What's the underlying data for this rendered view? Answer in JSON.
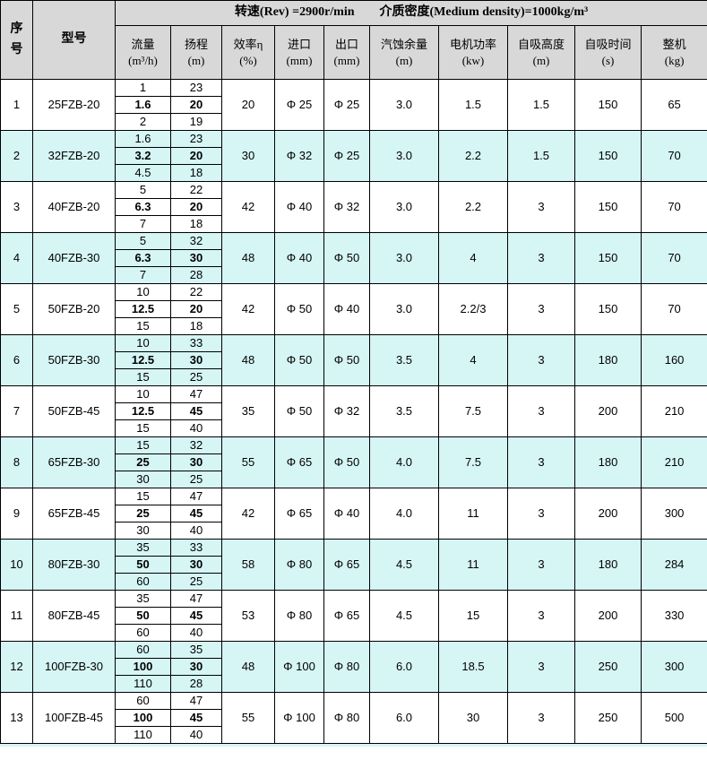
{
  "table": {
    "title": {
      "rev": "转速(Rev) =2900r/min",
      "density": "介质密度(Medium density)=1000kg/m³"
    },
    "columns": [
      {
        "key": "no",
        "label": "序号",
        "unit": ""
      },
      {
        "key": "model",
        "label": "型号",
        "unit": ""
      },
      {
        "key": "flow",
        "label": "流量",
        "unit": "(m³/h)"
      },
      {
        "key": "head",
        "label": "扬程",
        "unit": "(m)"
      },
      {
        "key": "eff",
        "label": "效率η",
        "unit": "(%)"
      },
      {
        "key": "inlet",
        "label": "进口",
        "unit": "(mm)"
      },
      {
        "key": "outlet",
        "label": "出口",
        "unit": "(mm)"
      },
      {
        "key": "npsh",
        "label": "汽蚀余量",
        "unit": "(m)"
      },
      {
        "key": "power",
        "label": "电机功率",
        "unit": "(kw)"
      },
      {
        "key": "suction_height",
        "label": "自吸高度",
        "unit": "(m)"
      },
      {
        "key": "suction_time",
        "label": "自吸时间",
        "unit": "(s)"
      },
      {
        "key": "weight",
        "label": "整机",
        "unit": "(kg)"
      }
    ],
    "rows": [
      {
        "no": "1",
        "model": "25FZB-20",
        "points": [
          [
            "1",
            "23"
          ],
          [
            "1.6",
            "20"
          ],
          [
            "2",
            "19"
          ]
        ],
        "eff": "20",
        "inlet": "Φ 25",
        "outlet": "Φ 25",
        "npsh": "3.0",
        "power": "1.5",
        "suction_height": "1.5",
        "suction_time": "150",
        "weight": "65"
      },
      {
        "no": "2",
        "model": "32FZB-20",
        "points": [
          [
            "1.6",
            "23"
          ],
          [
            "3.2",
            "20"
          ],
          [
            "4.5",
            "18"
          ]
        ],
        "eff": "30",
        "inlet": "Φ 32",
        "outlet": "Φ 25",
        "npsh": "3.0",
        "power": "2.2",
        "suction_height": "1.5",
        "suction_time": "150",
        "weight": "70"
      },
      {
        "no": "3",
        "model": "40FZB-20",
        "points": [
          [
            "5",
            "22"
          ],
          [
            "6.3",
            "20"
          ],
          [
            "7",
            "18"
          ]
        ],
        "eff": "42",
        "inlet": "Φ 40",
        "outlet": "Φ 32",
        "npsh": "3.0",
        "power": "2.2",
        "suction_height": "3",
        "suction_time": "150",
        "weight": "70"
      },
      {
        "no": "4",
        "model": "40FZB-30",
        "points": [
          [
            "5",
            "32"
          ],
          [
            "6.3",
            "30"
          ],
          [
            "7",
            "28"
          ]
        ],
        "eff": "48",
        "inlet": "Φ 40",
        "outlet": "Φ 50",
        "npsh": "3.0",
        "power": "4",
        "suction_height": "3",
        "suction_time": "150",
        "weight": "70"
      },
      {
        "no": "5",
        "model": "50FZB-20",
        "points": [
          [
            "10",
            "22"
          ],
          [
            "12.5",
            "20"
          ],
          [
            "15",
            "18"
          ]
        ],
        "eff": "42",
        "inlet": "Φ 50",
        "outlet": "Φ 40",
        "npsh": "3.0",
        "power": "2.2/3",
        "suction_height": "3",
        "suction_time": "150",
        "weight": "70"
      },
      {
        "no": "6",
        "model": "50FZB-30",
        "points": [
          [
            "10",
            "33"
          ],
          [
            "12.5",
            "30"
          ],
          [
            "15",
            "25"
          ]
        ],
        "eff": "48",
        "inlet": "Φ 50",
        "outlet": "Φ 50",
        "npsh": "3.5",
        "power": "4",
        "suction_height": "3",
        "suction_time": "180",
        "weight": "160"
      },
      {
        "no": "7",
        "model": "50FZB-45",
        "points": [
          [
            "10",
            "47"
          ],
          [
            "12.5",
            "45"
          ],
          [
            "15",
            "40"
          ]
        ],
        "eff": "35",
        "inlet": "Φ 50",
        "outlet": "Φ 32",
        "npsh": "3.5",
        "power": "7.5",
        "suction_height": "3",
        "suction_time": "200",
        "weight": "210"
      },
      {
        "no": "8",
        "model": "65FZB-30",
        "points": [
          [
            "15",
            "32"
          ],
          [
            "25",
            "30"
          ],
          [
            "30",
            "25"
          ]
        ],
        "eff": "55",
        "inlet": "Φ 65",
        "outlet": "Φ 50",
        "npsh": "4.0",
        "power": "7.5",
        "suction_height": "3",
        "suction_time": "180",
        "weight": "210"
      },
      {
        "no": "9",
        "model": "65FZB-45",
        "points": [
          [
            "15",
            "47"
          ],
          [
            "25",
            "45"
          ],
          [
            "30",
            "40"
          ]
        ],
        "eff": "42",
        "inlet": "Φ 65",
        "outlet": "Φ 40",
        "npsh": "4.0",
        "power": "11",
        "suction_height": "3",
        "suction_time": "200",
        "weight": "300"
      },
      {
        "no": "10",
        "model": "80FZB-30",
        "points": [
          [
            "35",
            "33"
          ],
          [
            "50",
            "30"
          ],
          [
            "60",
            "25"
          ]
        ],
        "eff": "58",
        "inlet": "Φ 80",
        "outlet": "Φ 65",
        "npsh": "4.5",
        "power": "11",
        "suction_height": "3",
        "suction_time": "180",
        "weight": "284"
      },
      {
        "no": "11",
        "model": "80FZB-45",
        "points": [
          [
            "35",
            "47"
          ],
          [
            "50",
            "45"
          ],
          [
            "60",
            "40"
          ]
        ],
        "eff": "53",
        "inlet": "Φ 80",
        "outlet": "Φ 65",
        "npsh": "4.5",
        "power": "15",
        "suction_height": "3",
        "suction_time": "200",
        "weight": "330"
      },
      {
        "no": "12",
        "model": "100FZB-30",
        "points": [
          [
            "60",
            "35"
          ],
          [
            "100",
            "30"
          ],
          [
            "110",
            "28"
          ]
        ],
        "eff": "48",
        "inlet": "Φ 100",
        "outlet": "Φ 80",
        "npsh": "6.0",
        "power": "18.5",
        "suction_height": "3",
        "suction_time": "250",
        "weight": "300"
      },
      {
        "no": "13",
        "model": "100FZB-45",
        "points": [
          [
            "60",
            "47"
          ],
          [
            "100",
            "45"
          ],
          [
            "110",
            "40"
          ]
        ],
        "eff": "55",
        "inlet": "Φ 100",
        "outlet": "Φ 80",
        "npsh": "6.0",
        "power": "30",
        "suction_height": "3",
        "suction_time": "250",
        "weight": "500"
      }
    ]
  },
  "colors": {
    "header_bg": "#d8d8d8",
    "alt_row_bg": "#d6f5f5",
    "border": "#000000"
  }
}
